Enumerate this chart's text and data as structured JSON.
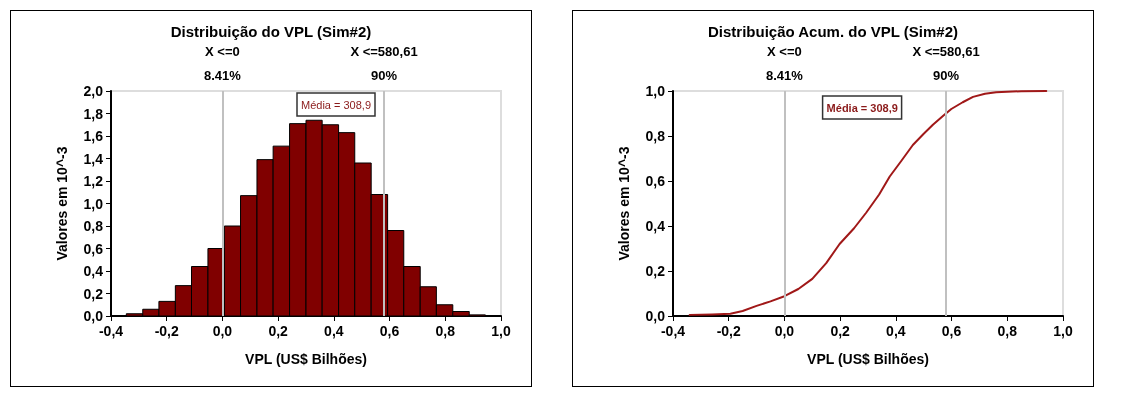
{
  "chart_data": [
    {
      "type": "histogram",
      "title": "Distribuição do VPL (Sim#2)",
      "xlabel": "VPL (US$ Bilhões)",
      "ylabel": "Valores em 10^-3",
      "color": "#800000",
      "bins": [
        -0.345,
        -0.286,
        -0.228,
        -0.169,
        -0.111,
        -0.052,
        0.007,
        0.065,
        0.124,
        0.182,
        0.241,
        0.3,
        0.358,
        0.417,
        0.475,
        0.534,
        0.593,
        0.651,
        0.71,
        0.768,
        0.827,
        0.886,
        0.944
      ],
      "values": [
        0.02,
        0.06,
        0.13,
        0.27,
        0.44,
        0.6,
        0.8,
        1.07,
        1.39,
        1.51,
        1.71,
        1.74,
        1.7,
        1.63,
        1.36,
        1.08,
        0.76,
        0.44,
        0.26,
        0.1,
        0.04,
        0.01
      ],
      "xlim": [
        -0.4,
        1.0
      ],
      "xticks": [
        {
          "value": -0.4,
          "label": "-0,4"
        },
        {
          "value": -0.2,
          "label": "-0,2"
        },
        {
          "value": 0,
          "label": "0,0"
        },
        {
          "value": 0.2,
          "label": "0,2"
        },
        {
          "value": 0.4,
          "label": "0,4"
        },
        {
          "value": 0.6,
          "label": "0,6"
        },
        {
          "value": 0.8,
          "label": "0,8"
        },
        {
          "value": 1.0,
          "label": "1,0"
        }
      ],
      "ylim": [
        0,
        2.0
      ],
      "yticks": [
        {
          "value": 0,
          "label": "0,0"
        },
        {
          "value": 0.2,
          "label": "0,2"
        },
        {
          "value": 0.4,
          "label": "0,4"
        },
        {
          "value": 0.6,
          "label": "0,6"
        },
        {
          "value": 0.8,
          "label": "0,8"
        },
        {
          "value": 1.0,
          "label": "1,0"
        },
        {
          "value": 1.2,
          "label": "1,2"
        },
        {
          "value": 1.4,
          "label": "1,4"
        },
        {
          "value": 1.6,
          "label": "1,6"
        },
        {
          "value": 1.8,
          "label": "1,8"
        },
        {
          "value": 2.0,
          "label": "2,0"
        }
      ],
      "ref_lines": [
        {
          "axis": "x",
          "value": 0,
          "label": "X <=0\n8.41%",
          "color": "#c0c0c0"
        },
        {
          "axis": "x",
          "value": 0.58061,
          "label": "X <=580,61\n90%",
          "color": "#c0c0c0"
        }
      ],
      "annotations": [
        "Média = 308,9"
      ],
      "grid": false
    },
    {
      "type": "line",
      "title": "Distribuição Acum. do VPL (Sim#2)",
      "xlabel": "VPL (US$ Bilhões)",
      "ylabel": "Valores em 10^-3",
      "series": [
        {
          "color": "#a01818",
          "x": [
            -0.34,
            -0.26,
            -0.194,
            -0.15,
            -0.1,
            -0.05,
            0.0,
            0.05,
            0.1,
            0.15,
            0.198,
            0.25,
            0.294,
            0.34,
            0.378,
            0.42,
            0.461,
            0.5,
            0.533,
            0.57,
            0.599,
            0.64,
            0.677,
            0.72,
            0.76,
            0.85,
            0.94
          ],
          "values": [
            0.005,
            0.007,
            0.01,
            0.022,
            0.045,
            0.065,
            0.088,
            0.12,
            0.165,
            0.235,
            0.32,
            0.39,
            0.46,
            0.54,
            0.62,
            0.69,
            0.76,
            0.81,
            0.85,
            0.89,
            0.92,
            0.95,
            0.974,
            0.988,
            0.994,
            0.999,
            1.0
          ]
        }
      ],
      "xlim": [
        -0.4,
        1.0
      ],
      "xticks": [
        {
          "value": -0.4,
          "label": "-0,4"
        },
        {
          "value": -0.2,
          "label": "-0,2"
        },
        {
          "value": 0,
          "label": "0,0"
        },
        {
          "value": 0.2,
          "label": "0,2"
        },
        {
          "value": 0.4,
          "label": "0,4"
        },
        {
          "value": 0.6,
          "label": "0,6"
        },
        {
          "value": 0.8,
          "label": "0,8"
        },
        {
          "value": 1.0,
          "label": "1,0"
        }
      ],
      "ylim": [
        0,
        1.0
      ],
      "yticks": [
        {
          "value": 0,
          "label": "0,0"
        },
        {
          "value": 0.2,
          "label": "0,2"
        },
        {
          "value": 0.4,
          "label": "0,4"
        },
        {
          "value": 0.6,
          "label": "0,6"
        },
        {
          "value": 0.8,
          "label": "0,8"
        },
        {
          "value": 1.0,
          "label": "1,0"
        }
      ],
      "ref_lines": [
        {
          "axis": "x",
          "value": 0,
          "label": "X <=0\n8.41%",
          "color": "#c0c0c0"
        },
        {
          "axis": "x",
          "value": 0.58061,
          "label": "X <=580,61\n90%",
          "color": "#c0c0c0"
        }
      ],
      "annotations": [
        "Média = 308,9"
      ],
      "grid": false,
      "marker": "none",
      "line_style": "solid"
    }
  ]
}
